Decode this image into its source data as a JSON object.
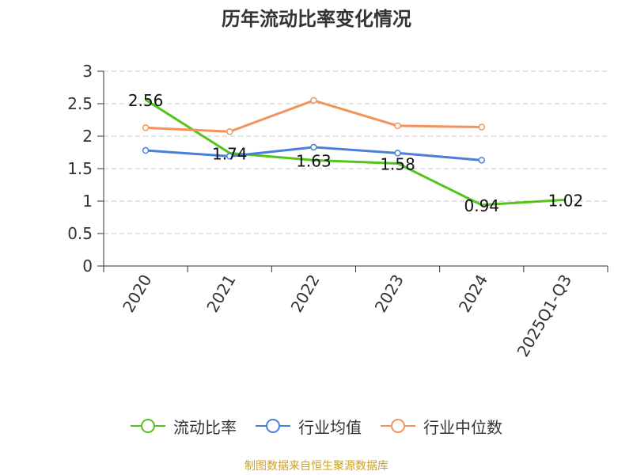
{
  "chart_data": {
    "type": "line",
    "title": "历年流动比率变化情况",
    "categories": [
      "2020",
      "2021",
      "2022",
      "2023",
      "2024",
      "2025Q1-Q3"
    ],
    "ylim": [
      0,
      3
    ],
    "yticks": [
      "0",
      "0.5",
      "1",
      "1.5",
      "2",
      "2.5",
      "3"
    ],
    "grid": true,
    "legend_position": "bottom",
    "series": [
      {
        "name": "流动比率",
        "color": "#52c41a",
        "values": [
          2.56,
          1.74,
          1.63,
          1.58,
          0.94,
          1.02
        ],
        "labels": [
          "2.56",
          "1.74",
          "1.63",
          "1.58",
          "0.94",
          "1.02"
        ],
        "show_markers": false
      },
      {
        "name": "行业均值",
        "color": "#4a7fd9",
        "values": [
          1.78,
          1.69,
          1.83,
          1.74,
          1.63,
          null
        ],
        "show_markers": true
      },
      {
        "name": "行业中位数",
        "color": "#f5925a",
        "values": [
          2.13,
          2.07,
          2.55,
          2.16,
          2.14,
          null
        ],
        "show_markers": true
      }
    ]
  },
  "footer": {
    "source": "制图数据来自恒生聚源数据库"
  }
}
